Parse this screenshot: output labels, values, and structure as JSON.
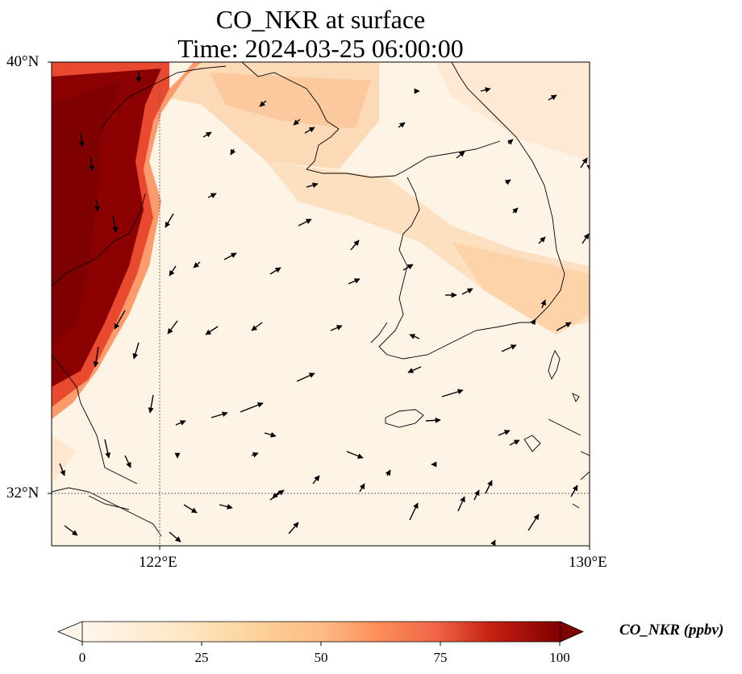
{
  "figure": {
    "title": "CO_NKR at surface",
    "time_label": "Time: 2024-03-25 06:00:00"
  },
  "map": {
    "extent": {
      "lon": [
        120,
        130
      ],
      "lat": [
        31,
        40
      ]
    },
    "gridlines": {
      "lon": [
        122
      ],
      "lat": [
        32
      ]
    },
    "lon_tick_labels": [
      "122°E",
      "130°E"
    ],
    "lat_tick_labels": [
      "40°N",
      "32°N"
    ]
  },
  "colorbar": {
    "label": "CO_NKR (ppbv)",
    "ticks": [
      "0",
      "25",
      "50",
      "75",
      "100"
    ],
    "range": [
      0,
      100
    ],
    "extend": "both",
    "colors": [
      "#fff5eb",
      "#fdd49e",
      "#fdbb84",
      "#fc8d59",
      "#ef6548",
      "#d7301f",
      "#b30000",
      "#7f0000"
    ]
  },
  "wind_vectors_note": ""
}
